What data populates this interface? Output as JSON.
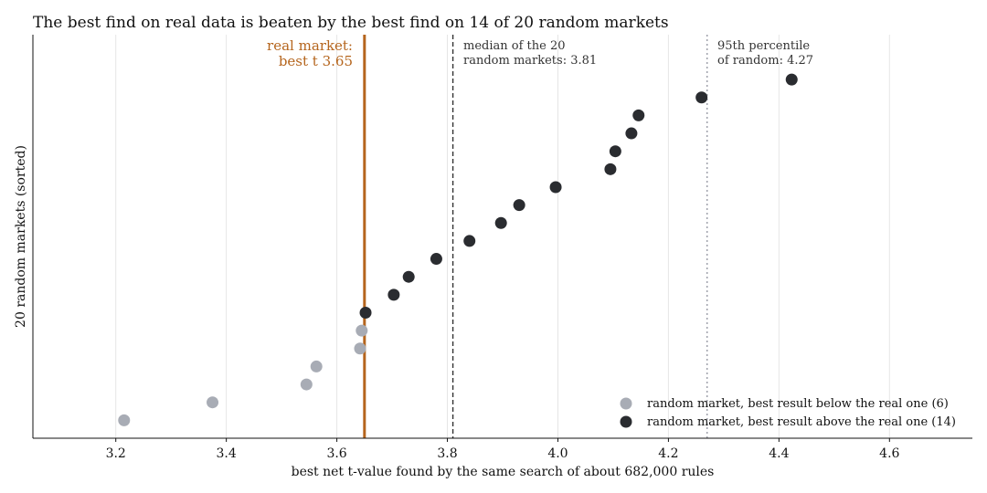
{
  "chart_data": {
    "type": "scatter",
    "title": "The best find on real data is beaten by the best find on 14 of 20 random markets",
    "xlabel": "best net t-value found by the same search of about 682,000 rules",
    "ylabel": "20 random markets (sorted)",
    "xlim": [
      3.05,
      4.75
    ],
    "ylim": [
      0.0,
      22.5
    ],
    "x_ticks": [
      "3.2",
      "3.4",
      "3.6",
      "3.8",
      "4.0",
      "4.2",
      "4.4",
      "4.6"
    ],
    "y_ticks_visible": false,
    "grid": "vertical",
    "real_line": {
      "x": 3.65,
      "color": "#b5651d",
      "label_line1": "real market:",
      "label_line2": "best t 3.65"
    },
    "median_line": {
      "x": 3.81,
      "style": "dashed",
      "color": "#333333",
      "label_line1": "median of the 20",
      "label_line2": "random markets: 3.81"
    },
    "p95_line": {
      "x": 4.27,
      "style": "dotted",
      "color": "#9a9ca6",
      "label_line1": "95th percentile",
      "label_line2": "of random: 4.27"
    },
    "series": [
      {
        "name": "random market, best result below the real one (6)",
        "color": "#a8acb5",
        "points": [
          {
            "x": 3.215,
            "y": 1
          },
          {
            "x": 3.375,
            "y": 2
          },
          {
            "x": 3.545,
            "y": 3
          },
          {
            "x": 3.563,
            "y": 4
          },
          {
            "x": 3.642,
            "y": 5
          },
          {
            "x": 3.645,
            "y": 6
          }
        ]
      },
      {
        "name": "random market, best result above the real one (14)",
        "color": "#2a2c30",
        "points": [
          {
            "x": 3.652,
            "y": 7
          },
          {
            "x": 3.703,
            "y": 8
          },
          {
            "x": 3.73,
            "y": 9
          },
          {
            "x": 3.78,
            "y": 10
          },
          {
            "x": 3.84,
            "y": 11
          },
          {
            "x": 3.897,
            "y": 12
          },
          {
            "x": 3.93,
            "y": 13
          },
          {
            "x": 3.996,
            "y": 14
          },
          {
            "x": 4.095,
            "y": 15
          },
          {
            "x": 4.104,
            "y": 16
          },
          {
            "x": 4.133,
            "y": 17
          },
          {
            "x": 4.146,
            "y": 18
          },
          {
            "x": 4.26,
            "y": 19
          },
          {
            "x": 4.423,
            "y": 20
          }
        ]
      }
    ],
    "legend_position": "bottom-right"
  }
}
